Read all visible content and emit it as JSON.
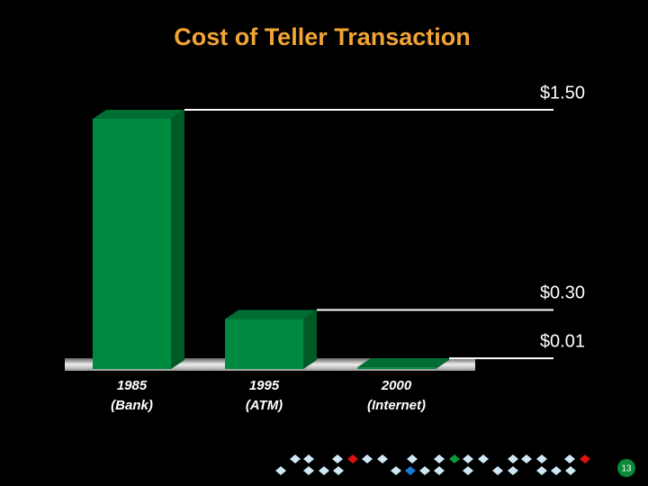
{
  "chart_data": {
    "type": "bar3d",
    "title": "Cost of Teller Transaction",
    "categories": [
      "1985",
      "1995",
      "2000"
    ],
    "category_sublabels": [
      "(Bank)",
      "(ATM)",
      "(Internet)"
    ],
    "values": [
      1.5,
      0.3,
      0.01
    ],
    "value_labels": [
      "$1.50",
      "$0.30",
      "$0.01"
    ],
    "color": "#008a40"
  },
  "page_number": "13"
}
